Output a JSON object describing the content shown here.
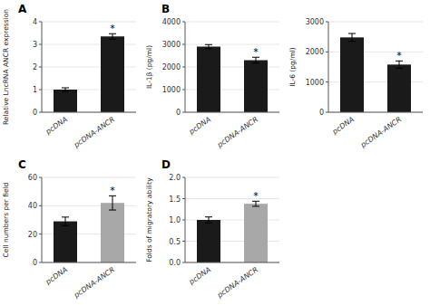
{
  "chart_data": [
    {
      "type": "bar",
      "title": "A",
      "categories": [
        "pcDNA",
        "pcDNA-ANCR"
      ],
      "values": [
        1.0,
        3.35
      ],
      "errors": [
        0.08,
        0.12
      ],
      "colors": [
        "#1a1a1a",
        "#1a1a1a"
      ],
      "ylabel": "Relative LncRNA ANCR expression",
      "ylim": [
        0,
        4
      ],
      "yticks": [
        0,
        1,
        2,
        3,
        4
      ],
      "annotations": [
        {
          "text": "*",
          "category": "pcDNA-ANCR"
        }
      ]
    },
    {
      "type": "bar",
      "title": "B",
      "categories": [
        "pcDNA",
        "pcDNA-ANCR"
      ],
      "values": [
        2900,
        2300
      ],
      "errors": [
        90,
        130
      ],
      "colors": [
        "#1a1a1a",
        "#1a1a1a"
      ],
      "ylabel": "IL-1β (pg/ml)",
      "ylim": [
        0,
        4000
      ],
      "yticks": [
        0,
        1000,
        2000,
        3000,
        4000
      ],
      "annotations": [
        {
          "text": "*",
          "category": "pcDNA-ANCR"
        }
      ]
    },
    {
      "type": "bar",
      "categories": [
        "pcDNA",
        "pcDNA-ANCR"
      ],
      "values": [
        2480,
        1580
      ],
      "errors": [
        130,
        120
      ],
      "colors": [
        "#1a1a1a",
        "#1a1a1a"
      ],
      "ylabel": "IL-6 (pg/ml)",
      "ylim": [
        0,
        3000
      ],
      "yticks": [
        0,
        1000,
        2000,
        3000
      ],
      "annotations": [
        {
          "text": "*",
          "category": "pcDNA-ANCR"
        }
      ]
    },
    {
      "type": "bar",
      "title": "C",
      "categories": [
        "pcDNA",
        "pcDNA-ANCR"
      ],
      "values": [
        29,
        42
      ],
      "errors": [
        3,
        5
      ],
      "colors": [
        "#1a1a1a",
        "#a8a8a8"
      ],
      "ylabel": "Cell numbers per field",
      "ylim": [
        0,
        60
      ],
      "yticks": [
        0,
        20,
        40,
        60
      ],
      "annotations": [
        {
          "text": "*",
          "category": "pcDNA-ANCR"
        }
      ]
    },
    {
      "type": "bar",
      "title": "D",
      "categories": [
        "pcDNA",
        "pcDNA-ANCR"
      ],
      "values": [
        1.0,
        1.38
      ],
      "errors": [
        0.07,
        0.06
      ],
      "colors": [
        "#1a1a1a",
        "#a8a8a8"
      ],
      "ylabel": "Folds of migratory ability",
      "ylim": [
        0,
        2.0
      ],
      "yticks": [
        {
          "value": 0.0,
          "label": "0.0"
        },
        0.5,
        {
          "value": 1.0,
          "label": "1.0"
        },
        1.5,
        {
          "value": 2.0,
          "label": "2.0"
        }
      ],
      "annotations": [
        {
          "text": "*",
          "category": "pcDNA-ANCR"
        }
      ]
    }
  ]
}
